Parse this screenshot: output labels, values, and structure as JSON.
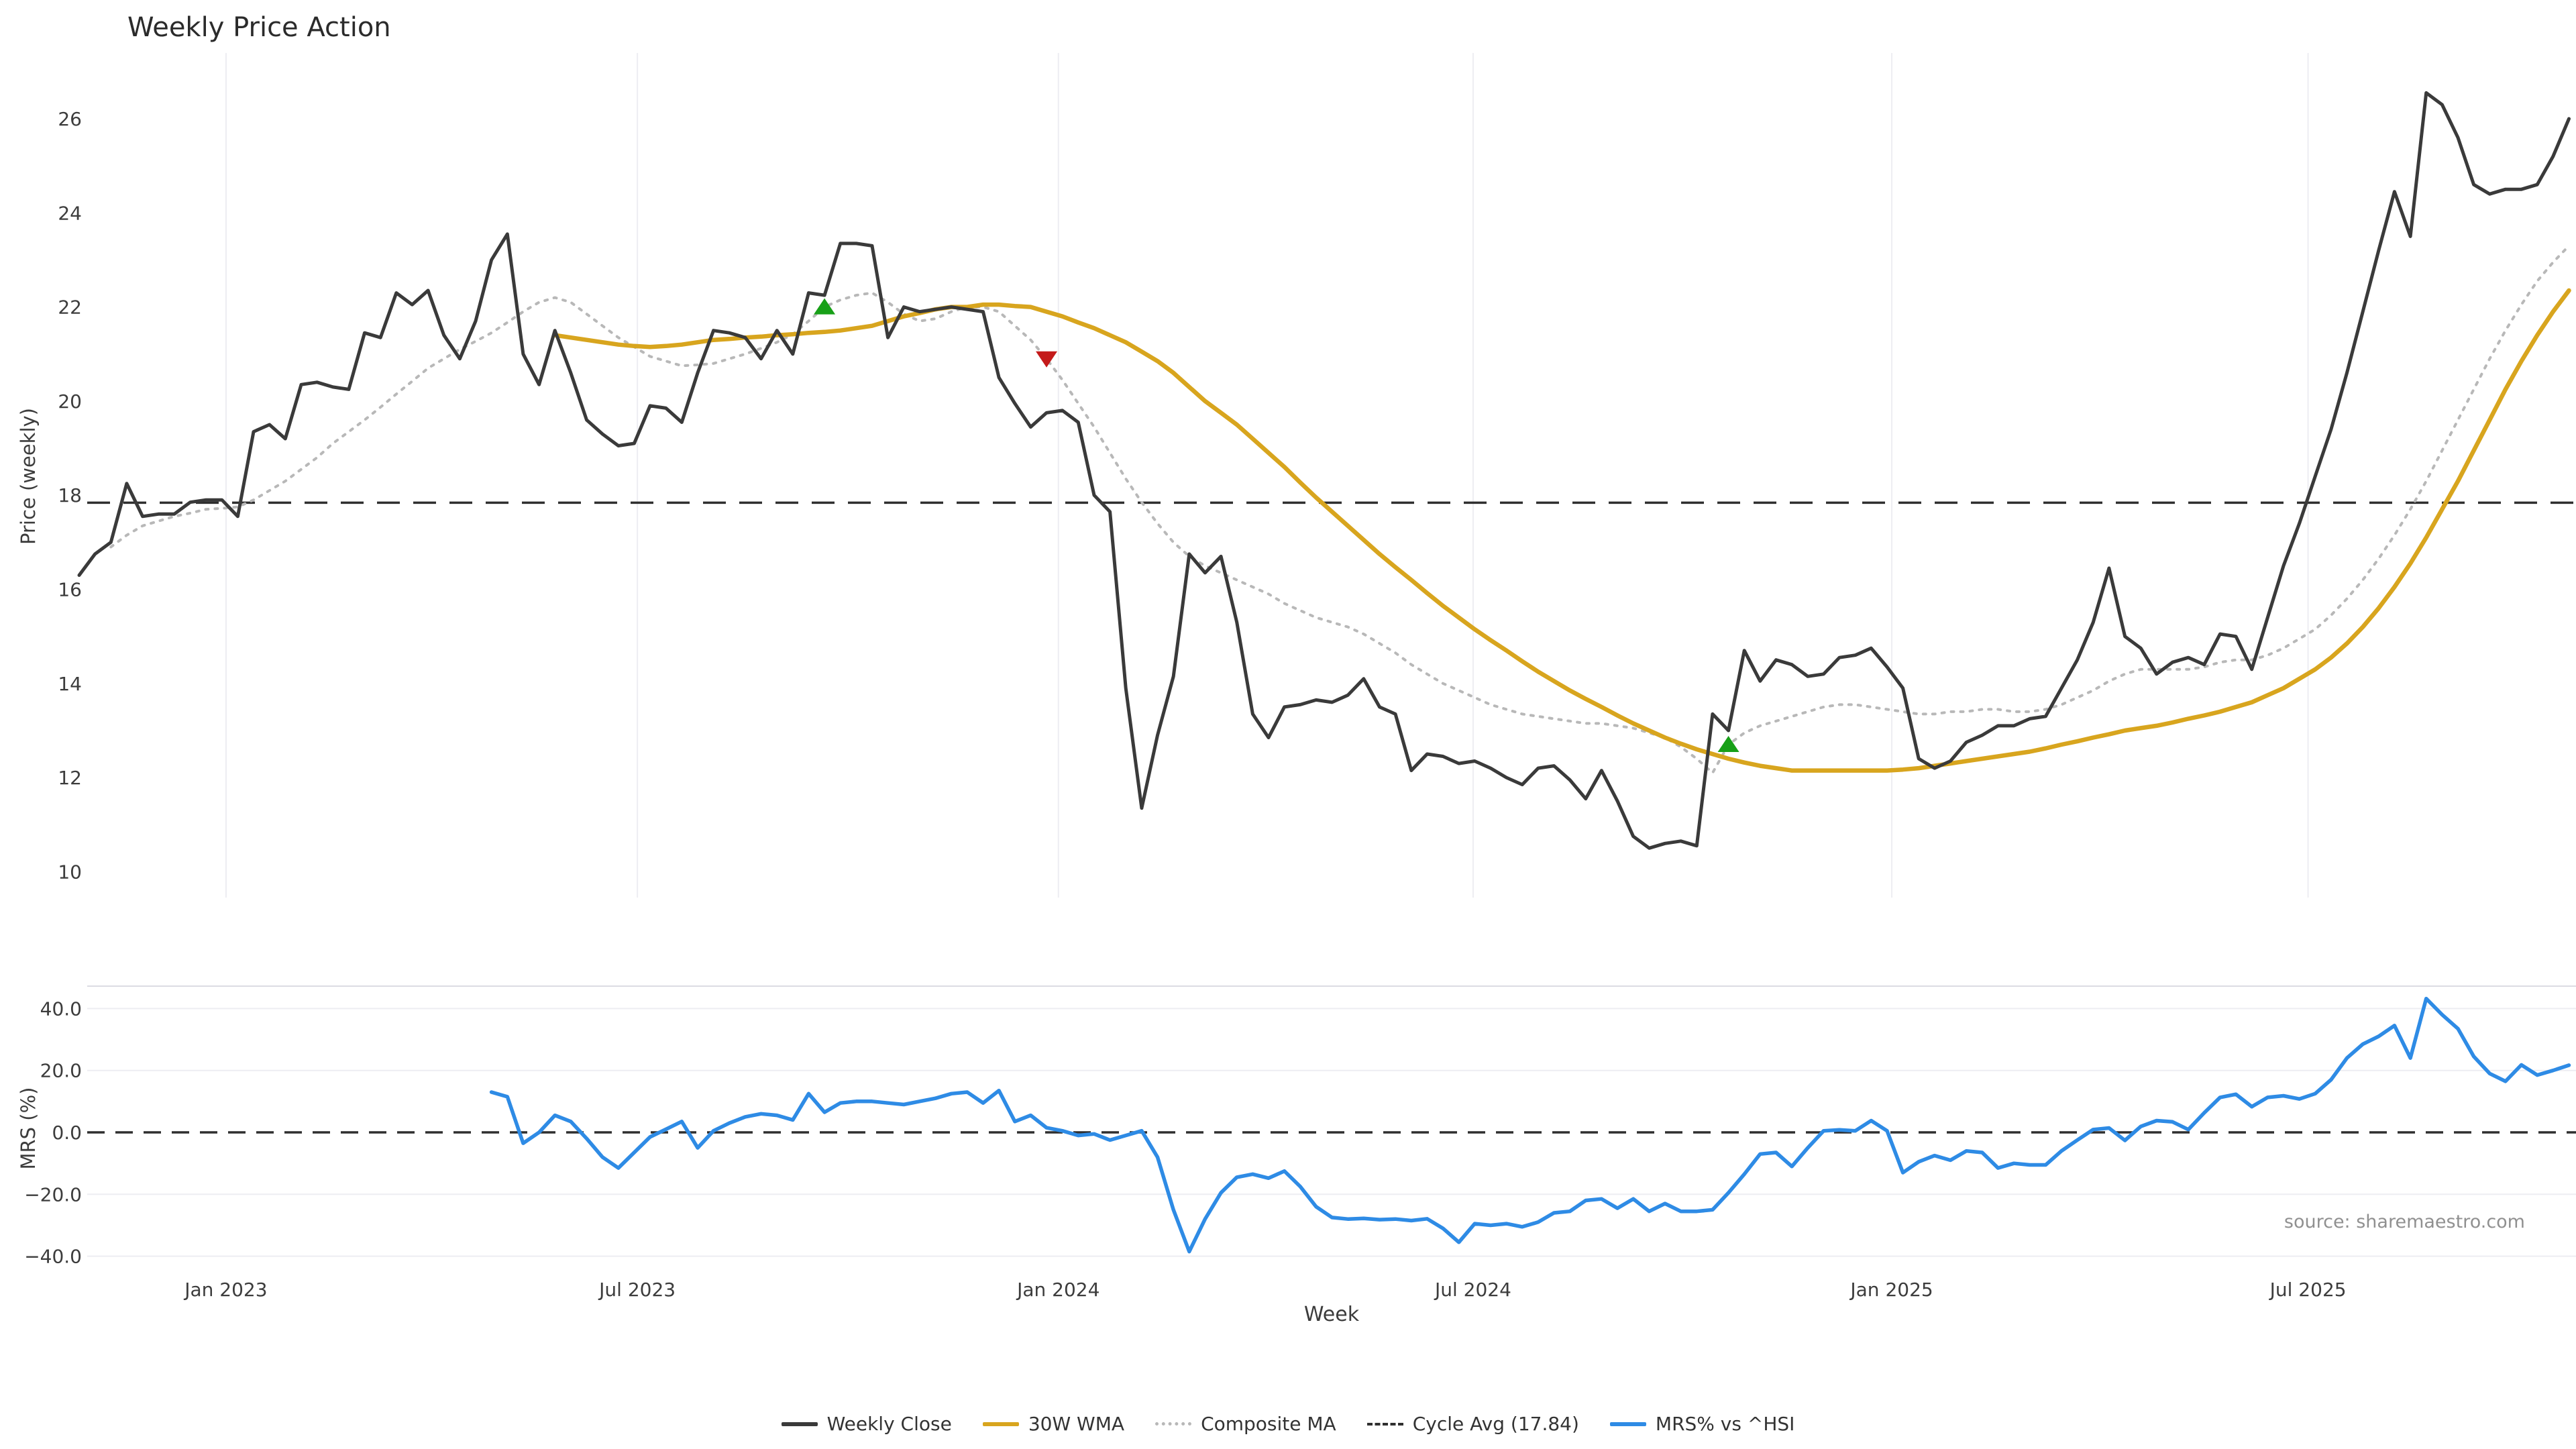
{
  "title": "Weekly Price Action",
  "source": "source: sharemaestro.com",
  "xlabel": "Week",
  "price_panel": {
    "ylabel": "Price (weekly)",
    "yticks": [
      26,
      24,
      22,
      20,
      18,
      16,
      14,
      12,
      10
    ]
  },
  "mrs_panel": {
    "ylabel": "MRS (%)",
    "yticks": [
      "40.0",
      "20.0",
      "0.0",
      "−20.0",
      "−40.0"
    ],
    "ytick_values": [
      40,
      20,
      0,
      -20,
      -40
    ]
  },
  "legend": [
    {
      "label": "Weekly Close",
      "color": "#3a3a3a",
      "style": "solid"
    },
    {
      "label": "30W WMA",
      "color": "#D8A51E",
      "style": "solid"
    },
    {
      "label": "Composite MA",
      "color": "#b8b8b8",
      "style": "dotted"
    },
    {
      "label": "Cycle Avg (17.84)",
      "color": "#2f2f2f",
      "style": "dashed"
    },
    {
      "label": "MRS% vs ^HSI",
      "color": "#2E8BE5",
      "style": "solid"
    }
  ],
  "chart_data": {
    "type": "line",
    "title": "Weekly Price Action",
    "xlabel": "Week",
    "x_unit": "weekly, late Oct 2022 through Nov 2025 (week index 0-157)",
    "grid": "vertical date gridlines on price panel, horizontal gridlines on MRS panel",
    "legend_position": "bottom center",
    "x_ticks": [
      {
        "label": "Jan 2023",
        "week": 9.26
      },
      {
        "label": "Jul 2023",
        "week": 35.2
      },
      {
        "label": "Jan 2024",
        "week": 61.75
      },
      {
        "label": "Jul 2024",
        "week": 87.9
      },
      {
        "label": "Jan 2025",
        "week": 114.3
      },
      {
        "label": "Jul 2025",
        "week": 140.55
      }
    ],
    "panels": [
      {
        "name": "price",
        "ylabel": "Price (weekly)",
        "ylim": [
          9.3,
          27.4
        ],
        "yticks": [
          26,
          24,
          22,
          20,
          18,
          16,
          14,
          12,
          10
        ],
        "cycle_avg": 17.84,
        "series": [
          {
            "name": "Weekly Close",
            "color": "#3a3a3a",
            "width": 5,
            "dash": "solid",
            "start_week": 0,
            "values": [
              16.3,
              16.75,
              17.0,
              18.25,
              17.55,
              17.6,
              17.6,
              17.85,
              17.9,
              17.9,
              17.55,
              19.35,
              19.5,
              19.2,
              20.35,
              20.4,
              20.3,
              20.25,
              21.45,
              21.35,
              22.3,
              22.05,
              22.35,
              21.4,
              20.9,
              21.7,
              23.0,
              23.55,
              21.0,
              20.35,
              21.5,
              20.6,
              19.6,
              19.3,
              19.05,
              19.1,
              19.9,
              19.85,
              19.55,
              20.6,
              21.5,
              21.45,
              21.35,
              20.9,
              21.5,
              21.0,
              22.3,
              22.25,
              23.35,
              23.35,
              23.3,
              21.35,
              22.0,
              21.9,
              21.95,
              22.0,
              21.95,
              21.9,
              20.5,
              19.95,
              19.45,
              19.75,
              19.8,
              19.55,
              18.0,
              17.65,
              13.9,
              11.35,
              12.9,
              14.15,
              16.75,
              16.35,
              16.7,
              15.3,
              13.35,
              12.85,
              13.5,
              13.55,
              13.65,
              13.6,
              13.75,
              14.1,
              13.5,
              13.35,
              12.15,
              12.5,
              12.45,
              12.3,
              12.35,
              12.2,
              12.0,
              11.85,
              12.2,
              12.25,
              11.95,
              11.55,
              12.15,
              11.5,
              10.75,
              10.5,
              10.6,
              10.65,
              10.55,
              13.35,
              13.0,
              14.7,
              14.05,
              14.5,
              14.4,
              14.15,
              14.2,
              14.55,
              14.6,
              14.75,
              14.35,
              13.9,
              12.4,
              12.2,
              12.35,
              12.75,
              12.9,
              13.1,
              13.1,
              13.25,
              13.3,
              13.9,
              14.5,
              15.3,
              16.45,
              15.0,
              14.75,
              14.2,
              14.45,
              14.55,
              14.4,
              15.05,
              15.0,
              14.3,
              15.4,
              16.5,
              17.4,
              18.4,
              19.4,
              20.6,
              21.9,
              23.2,
              24.45,
              23.5,
              26.55,
              26.3,
              25.6,
              24.6,
              24.4,
              24.5,
              24.5,
              24.6,
              25.2,
              26.0
            ]
          },
          {
            "name": "30W WMA",
            "color": "#D8A51E",
            "width": 6.5,
            "dash": "solid",
            "start_week": 30,
            "values": [
              21.4,
              21.35,
              21.3,
              21.25,
              21.2,
              21.17,
              21.15,
              21.17,
              21.2,
              21.25,
              21.3,
              21.32,
              21.35,
              21.37,
              21.4,
              21.42,
              21.45,
              21.47,
              21.5,
              21.55,
              21.6,
              21.7,
              21.8,
              21.87,
              21.95,
              22.0,
              22.0,
              22.05,
              22.05,
              22.02,
              22.0,
              21.9,
              21.8,
              21.67,
              21.55,
              21.4,
              21.25,
              21.05,
              20.85,
              20.6,
              20.3,
              20.0,
              19.75,
              19.5,
              19.2,
              18.9,
              18.6,
              18.27,
              17.95,
              17.65,
              17.35,
              17.05,
              16.75,
              16.47,
              16.2,
              15.92,
              15.65,
              15.4,
              15.15,
              14.92,
              14.7,
              14.47,
              14.25,
              14.05,
              13.85,
              13.67,
              13.5,
              13.32,
              13.15,
              13.0,
              12.85,
              12.72,
              12.6,
              12.5,
              12.4,
              12.32,
              12.25,
              12.2,
              12.15,
              12.15,
              12.15,
              12.15,
              12.15,
              12.15,
              12.15,
              12.17,
              12.2,
              12.25,
              12.3,
              12.35,
              12.4,
              12.45,
              12.5,
              12.55,
              12.62,
              12.7,
              12.77,
              12.85,
              12.92,
              13.0,
              13.05,
              13.1,
              13.17,
              13.25,
              13.32,
              13.4,
              13.5,
              13.6,
              13.75,
              13.9,
              14.1,
              14.3,
              14.55,
              14.85,
              15.2,
              15.6,
              16.05,
              16.55,
              17.1,
              17.7,
              18.3,
              18.95,
              19.6,
              20.25,
              20.85,
              21.4,
              21.9,
              22.35
            ]
          },
          {
            "name": "Composite MA",
            "color": "#b8b8b8",
            "width": 4,
            "dash": "dotted",
            "start_week": 2,
            "values": [
              16.9,
              17.15,
              17.35,
              17.45,
              17.55,
              17.62,
              17.7,
              17.72,
              17.75,
              17.9,
              18.1,
              18.3,
              18.55,
              18.8,
              19.1,
              19.35,
              19.6,
              19.87,
              20.15,
              20.42,
              20.7,
              20.9,
              21.1,
              21.27,
              21.45,
              21.67,
              21.9,
              22.1,
              22.2,
              22.1,
              21.85,
              21.6,
              21.35,
              21.15,
              20.95,
              20.85,
              20.75,
              20.77,
              20.8,
              20.9,
              21.0,
              21.12,
              21.25,
              21.42,
              21.7,
              22.0,
              22.15,
              22.25,
              22.3,
              22.1,
              21.85,
              21.7,
              21.75,
              21.9,
              22.0,
              22.0,
              21.9,
              21.6,
              21.3,
              20.9,
              20.45,
              19.95,
              19.45,
              18.9,
              18.35,
              17.85,
              17.4,
              17.0,
              16.7,
              16.5,
              16.35,
              16.2,
              16.05,
              15.9,
              15.7,
              15.55,
              15.4,
              15.3,
              15.2,
              15.05,
              14.85,
              14.65,
              14.4,
              14.2,
              14.0,
              13.85,
              13.7,
              13.55,
              13.45,
              13.35,
              13.3,
              13.25,
              13.2,
              13.15,
              13.15,
              13.1,
              13.05,
              12.95,
              12.85,
              12.65,
              12.4,
              12.1,
              12.7,
              12.95,
              13.1,
              13.2,
              13.3,
              13.4,
              13.5,
              13.55,
              13.55,
              13.5,
              13.45,
              13.4,
              13.35,
              13.35,
              13.4,
              13.4,
              13.45,
              13.45,
              13.4,
              13.4,
              13.45,
              13.55,
              13.7,
              13.85,
              14.05,
              14.2,
              14.3,
              14.3,
              14.3,
              14.3,
              14.35,
              14.45,
              14.5,
              14.5,
              14.6,
              14.75,
              14.95,
              15.15,
              15.45,
              15.8,
              16.2,
              16.65,
              17.15,
              17.7,
              18.3,
              18.95,
              19.6,
              20.25,
              20.9,
              21.5,
              22.05,
              22.55,
              22.95,
              23.3
            ]
          }
        ],
        "markers": [
          {
            "name": "buy-signal",
            "shape": "triangle-up",
            "color": "#18A018",
            "week": 47,
            "value": 22.0
          },
          {
            "name": "sell-signal",
            "shape": "triangle-down",
            "color": "#C41A1A",
            "week": 61,
            "value": 20.9
          },
          {
            "name": "buy-signal",
            "shape": "triangle-up",
            "color": "#18A018",
            "week": 104,
            "value": 12.7
          }
        ]
      },
      {
        "name": "mrs",
        "ylabel": "MRS (%)",
        "ylim": [
          -47,
          47
        ],
        "yticks": [
          40,
          20,
          0,
          -20,
          -40
        ],
        "zero_line": 0,
        "series": [
          {
            "name": "MRS% vs ^HSI",
            "color": "#2E8BE5",
            "width": 5.5,
            "dash": "solid",
            "start_week": 26,
            "values": [
              13,
              11.5,
              -3.5,
              0,
              5.5,
              3.5,
              -2,
              -8,
              -11.5,
              -6.5,
              -1.5,
              1,
              3.5,
              -5,
              0.5,
              3,
              5,
              6,
              5.5,
              4,
              12.5,
              6.5,
              9.5,
              10,
              10,
              9.5,
              9,
              10,
              11,
              12.5,
              13,
              9.5,
              13.5,
              3.5,
              5.5,
              1.5,
              0.5,
              -1,
              -0.5,
              -2.5,
              -1,
              0.5,
              -8,
              -25,
              -38.5,
              -28,
              -19.5,
              -14.5,
              -13.5,
              -14.8,
              -12.5,
              -17.5,
              -24,
              -27.5,
              -28,
              -27.8,
              -28.2,
              -28,
              -28.5,
              -27.9,
              -31,
              -35.5,
              -29.5,
              -30,
              -29.5,
              -30.5,
              -29,
              -26,
              -25.5,
              -22,
              -21.5,
              -24.5,
              -21.5,
              -25.5,
              -23,
              -25.5,
              -25.5,
              -25,
              -19.5,
              -13.5,
              -7,
              -6.5,
              -11,
              -5,
              0.5,
              0.8,
              0.5,
              3.8,
              0.5,
              -13,
              -9.5,
              -7.5,
              -9,
              -6,
              -6.5,
              -11.5,
              -10,
              -10.5,
              -10.5,
              -6,
              -2.5,
              0.9,
              1.4,
              -2.6,
              1.9,
              3.8,
              3.4,
              0.9,
              6.3,
              11.3,
              12.3,
              8.3,
              11.3,
              11.8,
              10.8,
              12.5,
              17,
              24,
              28.5,
              31,
              34.5,
              24,
              43.2,
              38,
              33.5,
              24.5,
              19,
              16.5,
              21.8,
              18.5,
              20,
              21.7
            ]
          }
        ]
      }
    ]
  }
}
